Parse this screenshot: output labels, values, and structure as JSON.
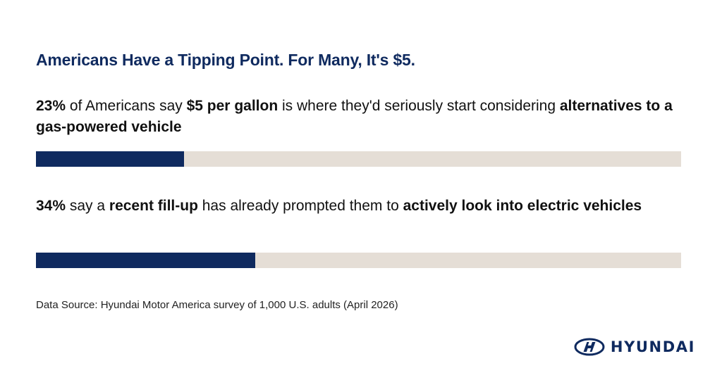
{
  "title": "Americans Have a Tipping Point. For Many, It's $5.",
  "stats": [
    {
      "segments": [
        {
          "text": "23%",
          "bold": true
        },
        {
          "text": " of Americans say ",
          "bold": false
        },
        {
          "text": "$5 per gallon",
          "bold": true
        },
        {
          "text": " is where they'd seriously start considering ",
          "bold": false
        },
        {
          "text": "alternatives to a gas-powered vehicle",
          "bold": true
        }
      ]
    },
    {
      "segments": [
        {
          "text": "34%",
          "bold": true
        },
        {
          "text": " say a ",
          "bold": false
        },
        {
          "text": "recent fill-up",
          "bold": true
        },
        {
          "text": " has already prompted them to ",
          "bold": false
        },
        {
          "text": "actively look into electric vehicles",
          "bold": true
        }
      ]
    }
  ],
  "source": "Data Source: Hyundai Motor America survey of 1,000 U.S. adults (April 2026)",
  "brand": {
    "logo_text": "HYUNDAI",
    "logo_icon": "hyundai-logo-icon"
  },
  "colors": {
    "title": "#0f2a5f",
    "bar_fill": "#0f2a5f",
    "bar_track": "#e5ded6"
  },
  "chart_data": {
    "type": "bar",
    "orientation": "horizontal",
    "categories": [
      "$5 per gallon is where they'd seriously start considering alternatives to a gas-powered vehicle",
      "a recent fill-up has already prompted them to actively look into electric vehicles"
    ],
    "values": [
      23,
      34
    ],
    "unit": "%",
    "xlim": [
      0,
      100
    ],
    "title": "Americans Have a Tipping Point. For Many, It's $5.",
    "grid": false,
    "legend": "none"
  }
}
